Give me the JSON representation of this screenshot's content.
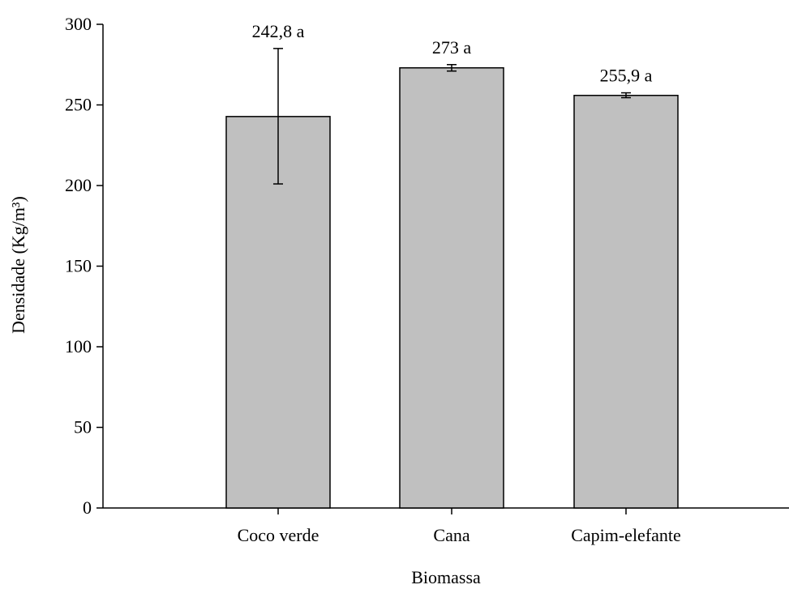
{
  "chart_data": {
    "type": "bar",
    "title": "",
    "xlabel": "Biomassa",
    "ylabel": "Densidade (Kg/m³)",
    "ylim": [
      0,
      300
    ],
    "yticks": [
      "0",
      "50",
      "100",
      "150",
      "200",
      "250",
      "300"
    ],
    "categories": [
      "Coco verde",
      "Cana",
      "Capim-elefante"
    ],
    "values": [
      242.8,
      273,
      255.9
    ],
    "error_low": [
      201,
      271,
      254.5
    ],
    "error_high": [
      285,
      275,
      257.5
    ],
    "data_labels": [
      "242,8 a",
      "273 a",
      "255,9 a"
    ],
    "bar_color": "#c0c0c0",
    "grid": false,
    "legend": "none"
  }
}
